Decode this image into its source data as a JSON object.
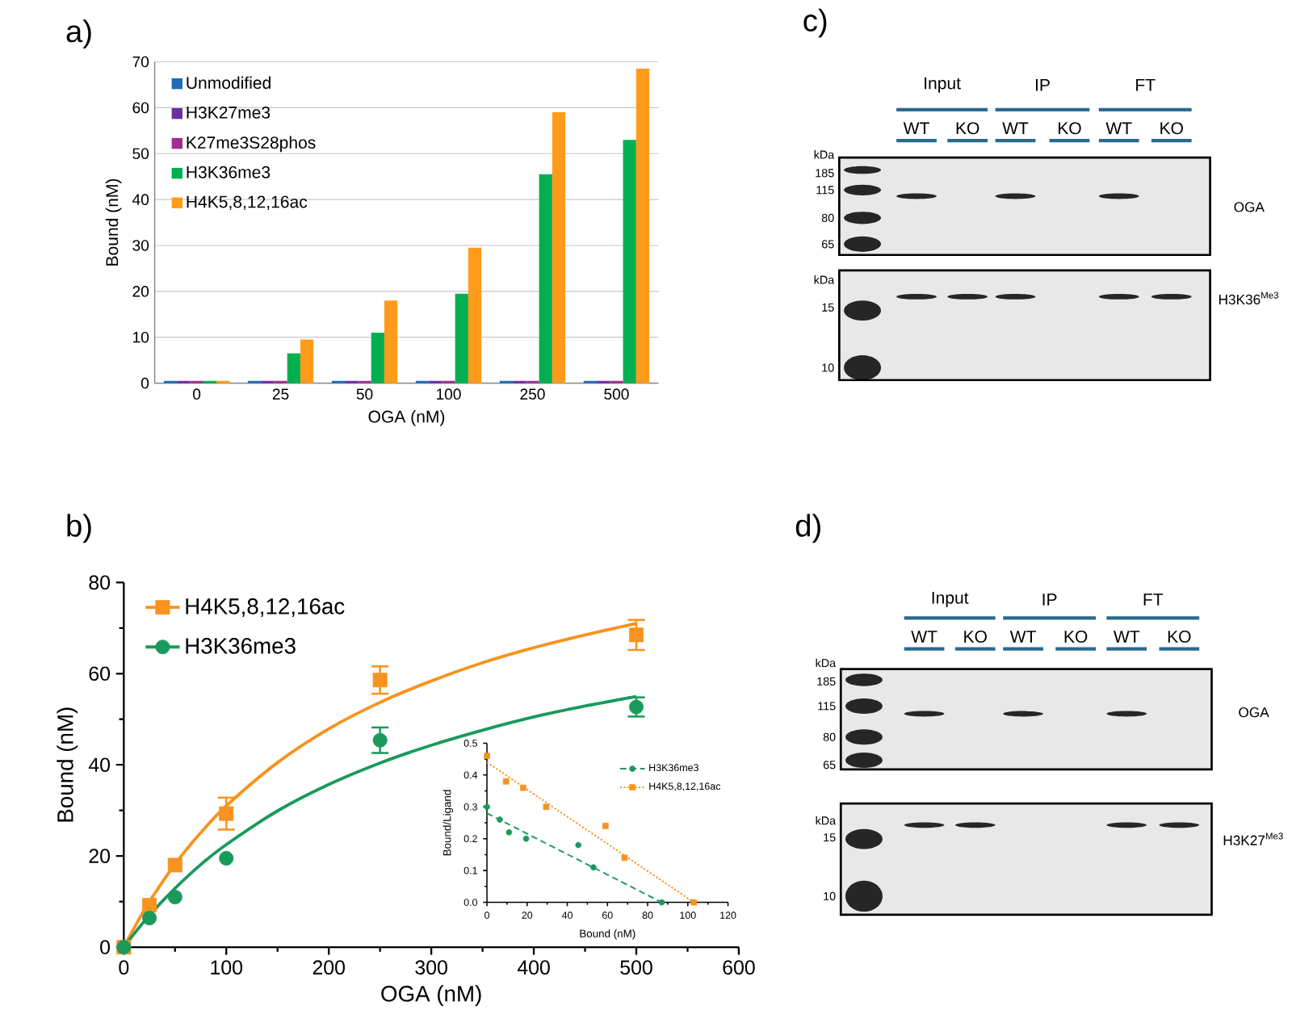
{
  "chart_data": [
    {
      "type": "bar",
      "title": "a)",
      "xlabel": "OGA (nM)",
      "ylabel": "Bound (nM)",
      "categories": [
        "0",
        "25",
        "50",
        "100",
        "250",
        "500"
      ],
      "series": [
        {
          "name": "Unmodified",
          "color": "#1f6db5",
          "values": [
            0.5,
            0.5,
            0.5,
            0.5,
            0.5,
            0.5
          ]
        },
        {
          "name": "H3K27me3",
          "color": "#6b2f9e",
          "values": [
            0.5,
            0.5,
            0.5,
            0.5,
            0.5,
            0.5
          ]
        },
        {
          "name": "K27me3S28phos",
          "color": "#9e2f8f",
          "values": [
            0.5,
            0.5,
            0.5,
            0.5,
            0.5,
            0.5
          ]
        },
        {
          "name": "H3K36me3",
          "color": "#00b050",
          "values": [
            0.5,
            6.5,
            11,
            19.5,
            45.5,
            53
          ]
        },
        {
          "name": "H4K5,8,12,16ac",
          "color": "#ff9b1a",
          "values": [
            0.5,
            9.5,
            18,
            29.5,
            59,
            68.5
          ]
        }
      ],
      "ylim": [
        0,
        70
      ],
      "yticks": [
        0,
        10,
        20,
        30,
        40,
        50,
        60,
        70
      ],
      "grid": "y",
      "legend": "top left"
    },
    {
      "type": "scatter",
      "title": "b)",
      "xlabel": "OGA (nM)",
      "ylabel": "Bound (nM)",
      "x": [
        0,
        25,
        50,
        100,
        250,
        500
      ],
      "series": [
        {
          "name": "H4K5,8,12,16ac",
          "color": "#f7931e",
          "marker": "square",
          "line_style": "solid",
          "values": [
            0,
            9.2,
            18,
            29.3,
            58.6,
            68.5
          ],
          "errors": [
            null,
            null,
            null,
            3.5,
            3,
            3.3
          ]
        },
        {
          "name": "H3K36me3",
          "color": "#199a5b",
          "marker": "circle",
          "line_style": "solid",
          "values": [
            0,
            6.4,
            11,
            19.5,
            45.4,
            52.7
          ],
          "errors": [
            null,
            null,
            null,
            null,
            2.8,
            2.1
          ]
        },
        {
          "type": "line",
          "color": "#f7931e",
          "x": [
            0,
            10,
            25,
            50,
            75,
            100,
            150,
            200,
            250,
            300,
            350,
            400,
            450,
            500
          ],
          "values": [
            0,
            4.2,
            10,
            18.2,
            25.1,
            31,
            40.5,
            47.9,
            53.7,
            58.4,
            62.4,
            65.7,
            68.5,
            71
          ]
        },
        {
          "type": "line",
          "color": "#199a5b",
          "x": [
            0,
            10,
            25,
            50,
            75,
            100,
            150,
            200,
            250,
            300,
            350,
            400,
            450,
            500
          ],
          "values": [
            0,
            2.9,
            7,
            12.9,
            18.1,
            22.5,
            29.9,
            35.7,
            40.4,
            44.3,
            47.6,
            50.5,
            52.9,
            55
          ]
        }
      ],
      "xlim": [
        0,
        600
      ],
      "xticks": [
        0,
        100,
        200,
        300,
        400,
        500,
        600,
        {
          "value": 50,
          "label": null
        },
        {
          "value": 150,
          "label": null
        },
        {
          "value": 250,
          "label": null
        },
        {
          "value": 350,
          "label": null
        },
        {
          "value": 450,
          "label": null
        },
        {
          "value": 550,
          "label": null
        }
      ],
      "ylim": [
        0,
        80
      ],
      "yticks": [
        0,
        20,
        40,
        60,
        80,
        {
          "value": 10,
          "label": null
        },
        {
          "value": 30,
          "label": null
        },
        {
          "value": 50,
          "label": null
        },
        {
          "value": 70,
          "label": null
        }
      ],
      "legend": "top left"
    },
    {
      "type": "scatter",
      "xlabel": "Bound (nM)",
      "ylabel": "Bound/Ligand",
      "series": [
        {
          "name": "H3K36me3",
          "color": "#199a5b",
          "marker": "circle",
          "line_style": "dashed",
          "x": [
            0,
            6.4,
            11,
            19.5,
            45.5,
            53,
            87
          ],
          "values": [
            0.3,
            0.26,
            0.22,
            0.2,
            0.18,
            0.11,
            0
          ]
        },
        {
          "name": "H4K5,8,12,16ac",
          "color": "#f7931e",
          "marker": "square",
          "line_style": "dotted",
          "x": [
            0,
            9.5,
            18,
            29.5,
            59,
            68.5,
            103
          ],
          "values": [
            0.46,
            0.38,
            0.36,
            0.3,
            0.24,
            0.14,
            0
          ]
        },
        {
          "type": "line",
          "color": "#199a5b",
          "line_style": "dashed",
          "x": [
            0,
            87
          ],
          "values": [
            0.28,
            0
          ]
        },
        {
          "type": "line",
          "color": "#f7931e",
          "line_style": "dotted",
          "x": [
            0,
            103
          ],
          "values": [
            0.44,
            0
          ]
        }
      ],
      "xlim": [
        0,
        120
      ],
      "xticks": [
        0,
        20,
        40,
        60,
        80,
        100,
        120,
        {
          "value": 10,
          "label": null
        },
        {
          "value": 30,
          "label": null
        },
        {
          "value": 50,
          "label": null
        },
        {
          "value": 70,
          "label": null
        },
        {
          "value": 90,
          "label": null
        },
        {
          "value": 110,
          "label": null
        }
      ],
      "ylim": [
        0,
        0.5
      ],
      "yticks": [
        {
          "value": 0,
          "label": "0.0"
        },
        0.1,
        0.2,
        0.3,
        0.4,
        0.5,
        {
          "value": 0.05,
          "label": null
        },
        {
          "value": 0.15,
          "label": null
        },
        {
          "value": 0.25,
          "label": null
        },
        {
          "value": 0.35,
          "label": null
        },
        {
          "value": 0.45,
          "label": null
        }
      ],
      "legend": "top right"
    },
    {
      "type": "other",
      "title": "c)",
      "annotations": [
        "Input",
        "IP",
        "FT",
        "WT",
        "KO",
        "WT",
        "KO",
        "WT",
        "KO",
        "kDa",
        "185",
        "115",
        "80",
        "65",
        "kDa",
        "15",
        "10",
        "OGA",
        "H3K36$^{Me3}$"
      ]
    },
    {
      "type": "other",
      "title": "d)",
      "annotations": [
        "Input",
        "IP",
        "FT",
        "WT",
        "KO",
        "WT",
        "KO",
        "WT",
        "KO",
        "kDa",
        "185",
        "115",
        "80",
        "65",
        "kDa",
        "15",
        "10",
        "OGA",
        "H3K27$^{Me3}$"
      ]
    }
  ]
}
